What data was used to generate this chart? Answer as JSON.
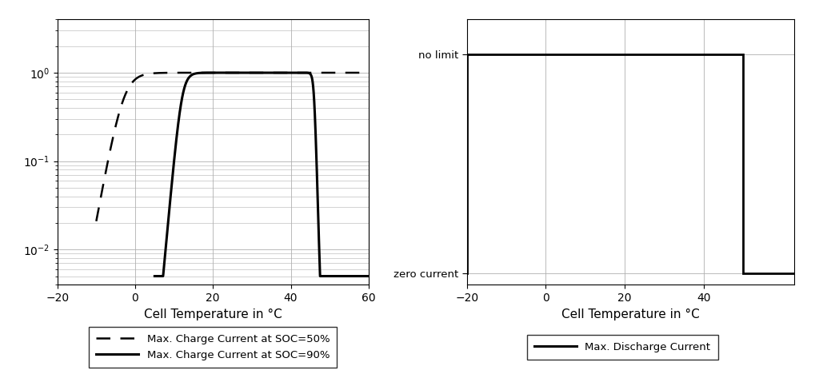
{
  "left_xlim": [
    -20,
    60
  ],
  "left_xticks": [
    -20,
    0,
    20,
    40,
    60
  ],
  "left_xlabel": "Cell Temperature in °C",
  "right_xlim": [
    -20,
    63
  ],
  "right_xticks": [
    -20,
    0,
    20,
    40
  ],
  "right_xlabel": "Cell Temperature in °C",
  "right_ytick_no_limit": "no limit",
  "right_ytick_zero_current": "zero current",
  "legend_left_dashed": "Max. Charge Current at SOC=50%",
  "legend_left_solid": "Max. Charge Current at SOC=90%",
  "legend_right_solid": "Max. Discharge Current",
  "line_color": "#000000",
  "grid_color": "#b0b0b0",
  "background_color": "#ffffff"
}
